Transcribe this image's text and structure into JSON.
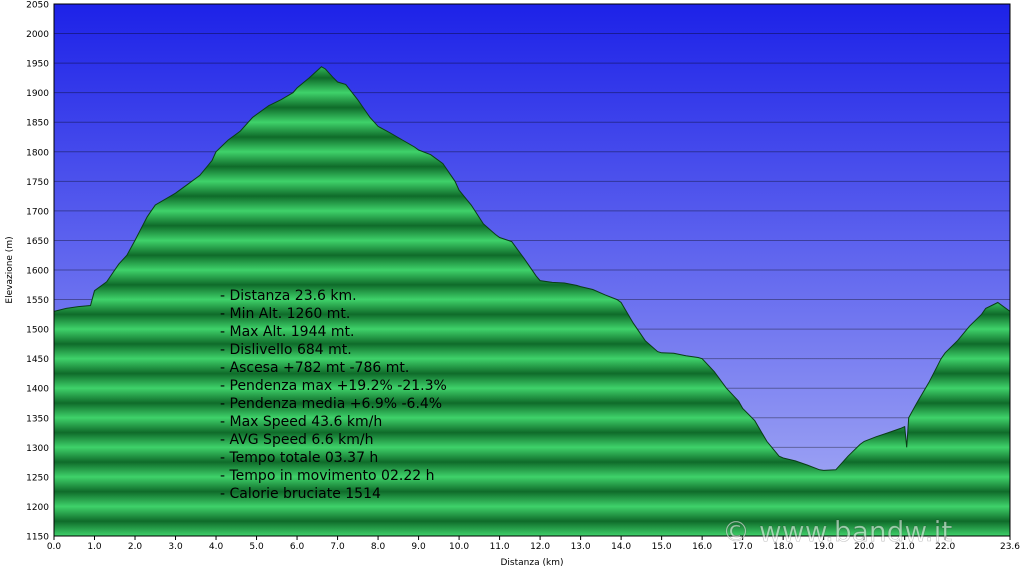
{
  "chart_data": {
    "type": "area",
    "xlabel": "Distanza   (km)",
    "ylabel": "Elevazione (m)",
    "xlim": [
      0,
      23.6
    ],
    "ylim": [
      1150,
      2050
    ],
    "x_ticks": [
      "0.0",
      "1.0",
      "2.0",
      "3.0",
      "4.0",
      "5.0",
      "6.0",
      "7.0",
      "8.0",
      "9.0",
      "10.0",
      "11.0",
      "12.0",
      "13.0",
      "14.0",
      "15.0",
      "16.0",
      "17.0",
      "18.0",
      "19.0",
      "20.0",
      "21.0",
      "22.0",
      "23.6"
    ],
    "x_tick_values": [
      0,
      1,
      2,
      3,
      4,
      5,
      6,
      7,
      8,
      9,
      10,
      11,
      12,
      13,
      14,
      15,
      16,
      17,
      18,
      19,
      20,
      21,
      22,
      23.6
    ],
    "y_ticks": [
      1150,
      1200,
      1250,
      1300,
      1350,
      1400,
      1450,
      1500,
      1550,
      1600,
      1650,
      1700,
      1750,
      1800,
      1850,
      1900,
      1950,
      2000,
      2050
    ],
    "grid": true,
    "colors": {
      "sky_top": "#1d22e8",
      "sky_bottom": "#aab0f5",
      "terrain_light": "#3fd26a",
      "terrain_dark": "#0f6b2a",
      "text": "#000000"
    },
    "series": [
      {
        "x": [
          0,
          0.3,
          0.6,
          0.9,
          1.0,
          1.3,
          1.6,
          1.8,
          2.0,
          2.3,
          2.5,
          2.8,
          3.0,
          3.3,
          3.6,
          3.9,
          4.0,
          4.3,
          4.6,
          4.9,
          5.0,
          5.3,
          5.6,
          5.9,
          6.0,
          6.3,
          6.6,
          6.7,
          6.9,
          7.0,
          7.2,
          7.5,
          7.8,
          8.0,
          8.3,
          8.6,
          8.9,
          9.0,
          9.3,
          9.6,
          9.9,
          10.0,
          10.3,
          10.6,
          10.9,
          11.0,
          11.3,
          11.6,
          11.9,
          12.0,
          12.3,
          12.6,
          12.9,
          13.0,
          13.3,
          13.6,
          13.9,
          14.0,
          14.3,
          14.6,
          14.9,
          15.0,
          15.3,
          15.6,
          15.9,
          16.0,
          16.3,
          16.6,
          16.9,
          17.0,
          17.3,
          17.6,
          17.9,
          18.0,
          18.3,
          18.6,
          18.9,
          19.0,
          19.3,
          19.6,
          19.9,
          20.0,
          20.3,
          20.6,
          20.9,
          21.0,
          21.05,
          21.1,
          21.3,
          21.6,
          21.9,
          22.0,
          22.3,
          22.6,
          22.9,
          23.0,
          23.3,
          23.6
        ],
        "y": [
          1530,
          1535,
          1538,
          1540,
          1565,
          1580,
          1610,
          1625,
          1650,
          1690,
          1710,
          1722,
          1730,
          1745,
          1760,
          1785,
          1800,
          1820,
          1835,
          1858,
          1863,
          1878,
          1888,
          1900,
          1908,
          1925,
          1944,
          1940,
          1925,
          1918,
          1914,
          1888,
          1858,
          1843,
          1832,
          1820,
          1808,
          1803,
          1795,
          1780,
          1750,
          1735,
          1710,
          1678,
          1660,
          1655,
          1648,
          1620,
          1590,
          1582,
          1579,
          1578,
          1574,
          1572,
          1567,
          1558,
          1550,
          1545,
          1510,
          1480,
          1462,
          1460,
          1459,
          1455,
          1452,
          1450,
          1428,
          1400,
          1378,
          1366,
          1345,
          1310,
          1285,
          1282,
          1277,
          1270,
          1262,
          1261,
          1262,
          1285,
          1305,
          1310,
          1318,
          1325,
          1332,
          1335,
          1300,
          1350,
          1375,
          1410,
          1450,
          1460,
          1480,
          1505,
          1525,
          1535,
          1545,
          1530
        ]
      }
    ],
    "annotation_lines": [
      "- Distanza 23.6 km.",
      "- Min Alt. 1260 mt.",
      "- Max Alt. 1944 mt.",
      "- Dislivello 684 mt.",
      "- Ascesa +782 mt -786 mt.",
      "- Pendenza max +19.2% -21.3%",
      "- Pendenza media +6.9% -6.4%",
      "- Max Speed 43.6 km/h",
      "- AVG Speed 6.6 km/h",
      "- Tempo totale 03.37 h",
      "- Tempo in movimento 02.22 h",
      "- Calorie bruciate 1514"
    ],
    "watermark": "© www.bandw.it"
  }
}
